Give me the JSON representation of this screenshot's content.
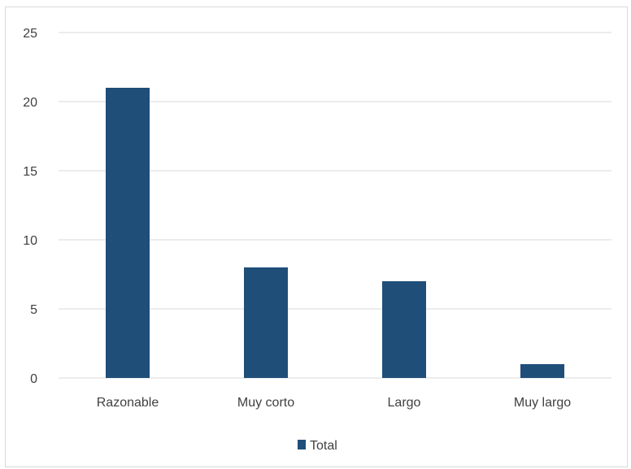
{
  "chart_data": {
    "type": "bar",
    "categories": [
      "Razonable",
      "Muy corto",
      "Largo",
      "Muy largo"
    ],
    "series": [
      {
        "name": "Total",
        "values": [
          21,
          8,
          7,
          1
        ],
        "color": "#1f4e79"
      }
    ],
    "ylim": [
      0,
      25
    ],
    "yticks": [
      0,
      5,
      10,
      15,
      20,
      25
    ],
    "grid": true,
    "legend_position": "bottom",
    "title": "",
    "xlabel": "",
    "ylabel": ""
  }
}
